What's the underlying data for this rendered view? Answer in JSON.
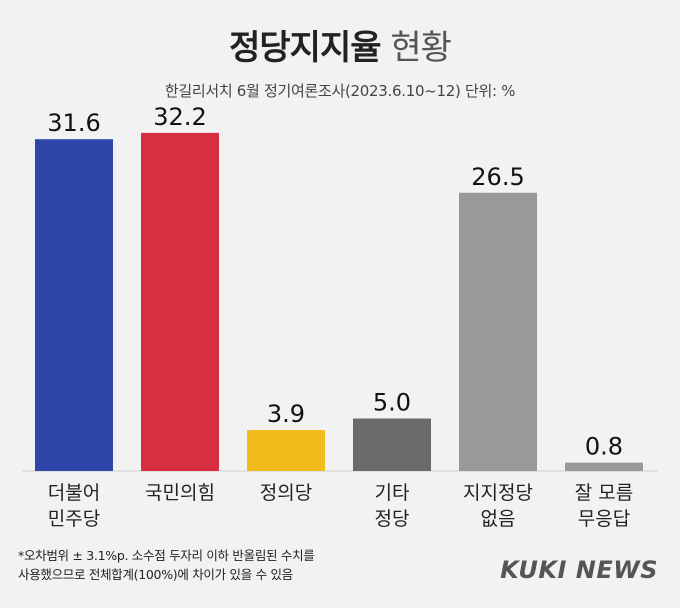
{
  "title": {
    "bold": "정당지지율",
    "light": "현황"
  },
  "subtitle": "한길리서치 6월 정기여론조사(2023.6.10~12) 단위: %",
  "footnote": {
    "line1": "*오차범위 ± 3.1%p. 소수점 두자리 이하 반올림된 수치를",
    "line2": "사용했으므로 전체합계(100%)에 차이가 있을 수 있음"
  },
  "logo": "KUKI NEWS",
  "chart_data": {
    "type": "bar",
    "categories": [
      [
        "더불어",
        "민주당"
      ],
      [
        "국민의힘"
      ],
      [
        "정의당"
      ],
      [
        "기타",
        "정당"
      ],
      [
        "지지정당",
        "없음"
      ],
      [
        "잘 모름",
        "무응답"
      ]
    ],
    "values": [
      31.6,
      32.2,
      3.9,
      5.0,
      26.5,
      0.8
    ],
    "value_labels": [
      "31.6",
      "32.2",
      "3.9",
      "5.0",
      "26.5",
      "0.8"
    ],
    "colors": [
      "#2e46a8",
      "#d63040",
      "#f0bd1c",
      "#6b6b6b",
      "#999999",
      "#999999"
    ],
    "ylim": [
      0,
      34
    ],
    "grid": false
  }
}
